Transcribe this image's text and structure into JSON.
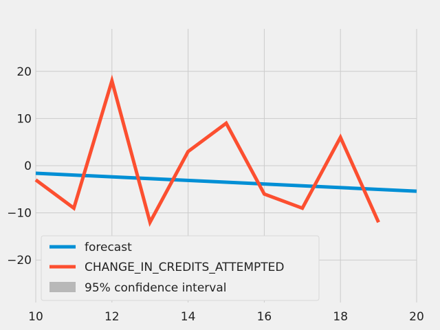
{
  "chart_data": {
    "type": "line",
    "xlim": [
      10,
      20
    ],
    "ylim": [
      -29,
      29
    ],
    "x_ticks": [
      10,
      12,
      14,
      16,
      18,
      20
    ],
    "y_ticks": [
      -20,
      -10,
      0,
      10,
      20
    ],
    "x_tick_labels": [
      "10",
      "12",
      "14",
      "16",
      "18",
      "20"
    ],
    "y_tick_labels": [
      "−20",
      "−10",
      "0",
      "10",
      "20"
    ],
    "grid": true,
    "legend_position": "bottom-left",
    "series": [
      {
        "name": "forecast",
        "color": "#008fd5",
        "x": [
          10,
          20
        ],
        "y": [
          -1.6,
          -5.4
        ]
      },
      {
        "name": "CHANGE_IN_CREDITS_ATTEMPTED",
        "color": "#fc4f30",
        "x": [
          10,
          11,
          12,
          13,
          14,
          15,
          16,
          17,
          18,
          19
        ],
        "y": [
          -3,
          -9,
          18,
          -12,
          3,
          9,
          -6,
          -9,
          6,
          -12
        ]
      }
    ],
    "confidence_interval": {
      "name": "95% confidence interval",
      "color": "#b8b8b8"
    }
  }
}
